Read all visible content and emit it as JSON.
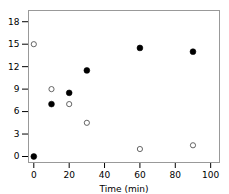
{
  "chart_data": {
    "type": "scatter",
    "x": [
      0,
      10,
      20,
      30,
      60,
      90
    ],
    "series": [
      {
        "color": "#555555",
        "marker": "open",
        "values": [
          15,
          9,
          7.0,
          4.5,
          1.0,
          1.5
        ]
      },
      {
        "color": "#000000",
        "marker": "filled",
        "values": [
          0,
          7,
          8.5,
          11.5,
          14.5,
          14.0
        ]
      }
    ],
    "xlabel": "Time (min)",
    "xlim": [
      -3,
      105
    ],
    "ylim": [
      -0.8,
      19.5
    ],
    "xticks": [
      0,
      20,
      40,
      60,
      80,
      100
    ],
    "yticks": [
      0,
      3,
      6,
      9,
      12,
      15,
      18
    ]
  }
}
